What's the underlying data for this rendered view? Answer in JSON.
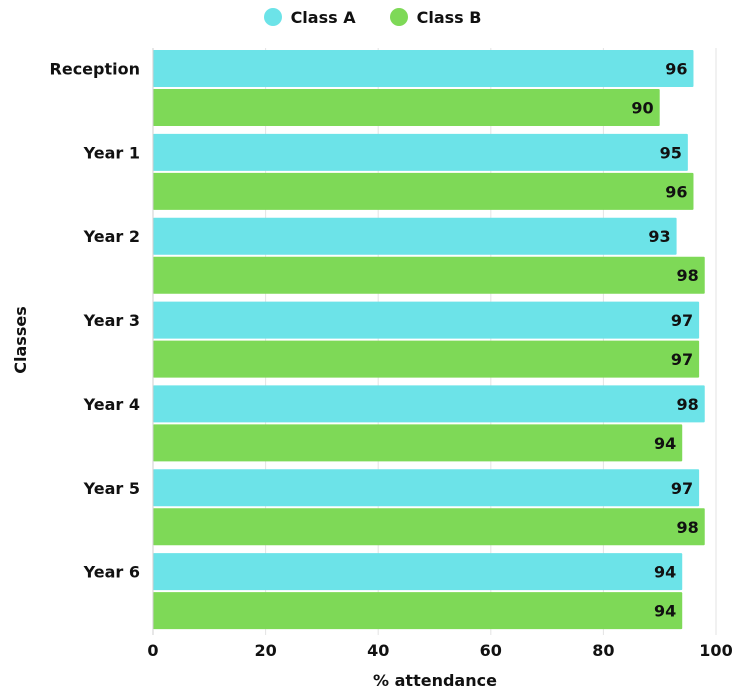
{
  "chart_data": {
    "type": "bar",
    "orientation": "horizontal",
    "categories": [
      "Reception",
      "Year 1",
      "Year 2",
      "Year 3",
      "Year 4",
      "Year 5",
      "Year 6"
    ],
    "series": [
      {
        "name": "Class A",
        "color": "#6ce3e8",
        "values": [
          96,
          95,
          93,
          97,
          98,
          97,
          94
        ]
      },
      {
        "name": "Class B",
        "color": "#7ed957",
        "values": [
          90,
          96,
          98,
          97,
          94,
          98,
          94
        ]
      }
    ],
    "xlabel": "% attendance",
    "ylabel": "Classes",
    "xlim": [
      0,
      100
    ],
    "xticks": [
      0,
      20,
      40,
      60,
      80,
      100
    ],
    "grid": true,
    "legend": "top-center",
    "data_labels": true
  }
}
